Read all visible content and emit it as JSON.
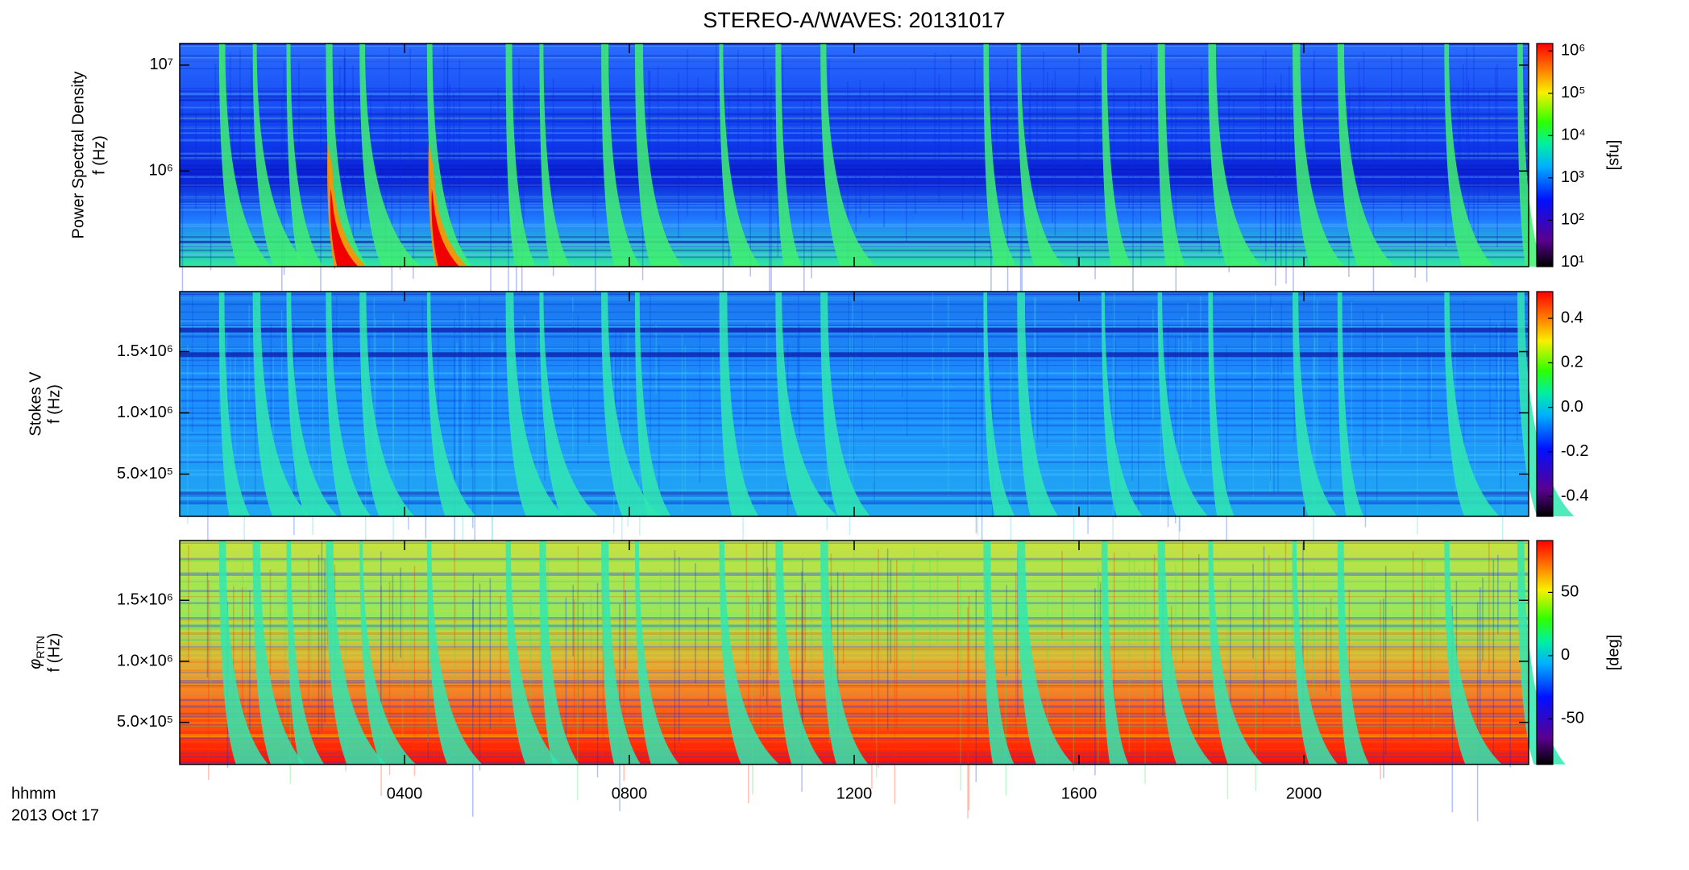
{
  "chart_data": [
    {
      "type": "heatmap",
      "title": "STEREO-A/WAVES: 20131017",
      "ylabel": [
        "Power Spectral Density",
        "f (Hz)"
      ],
      "xlim": [
        0,
        24
      ],
      "xticks": [
        {
          "value": 4,
          "label": "0400"
        },
        {
          "value": 8,
          "label": "0800"
        },
        {
          "value": 12,
          "label": "1200"
        },
        {
          "value": 16,
          "label": "1600"
        },
        {
          "value": 20,
          "label": "2000"
        }
      ],
      "ylim": [
        125000,
        16000000
      ],
      "log_y": true,
      "yticks": [
        {
          "value": 1000000,
          "label": "10⁶"
        },
        {
          "value": 10000000,
          "label": "10⁷"
        }
      ],
      "colorbar": {
        "label": "[sfu]",
        "clim": [
          8,
          1500000
        ],
        "log": true,
        "ticks": [
          {
            "value": 10,
            "label": "10¹"
          },
          {
            "value": 100,
            "label": "10²"
          },
          {
            "value": 1000,
            "label": "10³"
          },
          {
            "value": 10000,
            "label": "10⁴"
          },
          {
            "value": 100000,
            "label": "10⁵"
          },
          {
            "value": 1000000,
            "label": "10⁶"
          }
        ]
      }
    },
    {
      "type": "heatmap",
      "ylabel": [
        "Stokes V",
        "f (Hz)"
      ],
      "xlim": [
        0,
        24
      ],
      "xticks": [
        {
          "value": 4,
          "label": "0400"
        },
        {
          "value": 8,
          "label": "0800"
        },
        {
          "value": 12,
          "label": "1200"
        },
        {
          "value": 16,
          "label": "1600"
        },
        {
          "value": 20,
          "label": "2000"
        }
      ],
      "ylim": [
        155000,
        1990000
      ],
      "log_y": false,
      "yticks": [
        {
          "value": 500000,
          "label": "5.0×10⁵"
        },
        {
          "value": 1000000,
          "label": "1.0×10⁶"
        },
        {
          "value": 1500000,
          "label": "1.5×10⁶"
        }
      ],
      "colorbar": {
        "clim": [
          -0.49,
          0.52
        ],
        "log": false,
        "ticks": [
          0.4,
          0.2,
          {
            "value": 0,
            "label": "0.0"
          },
          -0.2,
          -0.4
        ]
      }
    },
    {
      "type": "heatmap",
      "ylabel": [
        "φ",
        "f (Hz)"
      ],
      "ylabel_sub": "RTN",
      "x_label": "hhmm",
      "x_sublabel": "2013 Oct 17",
      "xlim": [
        0,
        24
      ],
      "xticks": [
        {
          "value": 4,
          "label": "0400"
        },
        {
          "value": 8,
          "label": "0800"
        },
        {
          "value": 12,
          "label": "1200"
        },
        {
          "value": 16,
          "label": "1600"
        },
        {
          "value": 20,
          "label": "2000"
        }
      ],
      "ylim": [
        155000,
        1990000
      ],
      "log_y": false,
      "yticks": [
        {
          "value": 500000,
          "label": "5.0×10⁵"
        },
        {
          "value": 1000000,
          "label": "1.0×10⁶"
        },
        {
          "value": 1500000,
          "label": "1.5×10⁶"
        }
      ],
      "colorbar": {
        "label": "[deg]",
        "clim": [
          -86,
          91
        ],
        "log": false,
        "ticks": [
          50,
          0,
          -50
        ]
      }
    }
  ]
}
